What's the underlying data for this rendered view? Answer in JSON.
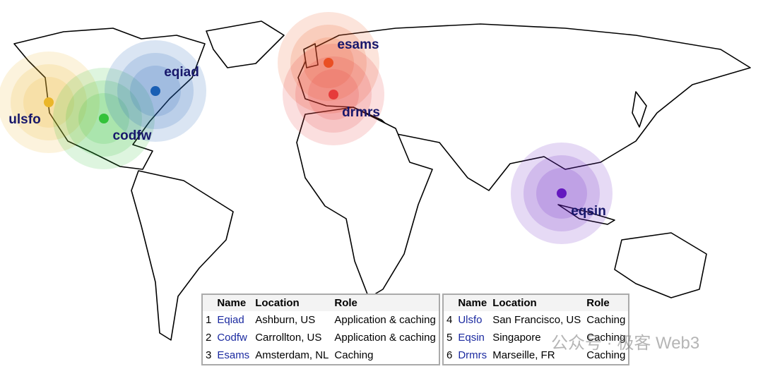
{
  "markers": [
    {
      "label": "ulsfo",
      "color": "#eab62a"
    },
    {
      "label": "codfw",
      "color": "#34c23a"
    },
    {
      "label": "eqiad",
      "color": "#1a5fb4"
    },
    {
      "label": "esams",
      "color": "#ec5a1c"
    },
    {
      "label": "drmrs",
      "color": "#e63b3b"
    },
    {
      "label": "eqsin",
      "color": "#6418bf"
    }
  ],
  "tables": [
    {
      "header": [
        "Name",
        "Location",
        "Role"
      ],
      "rows": [
        [
          "1",
          "Eqiad",
          "Ashburn, US",
          "Application & caching"
        ],
        [
          "2",
          "Codfw",
          "Carrollton, US",
          "Application & caching"
        ],
        [
          "3",
          "Esams",
          "Amsterdam, NL",
          "Caching"
        ]
      ]
    },
    {
      "header": [
        "Name",
        "Location",
        "Role"
      ],
      "rows": [
        [
          "4",
          "Ulsfo",
          "San Francisco, US",
          "Caching"
        ],
        [
          "5",
          "Eqsin",
          "Singapore",
          "Caching"
        ],
        [
          "6",
          "Drmrs",
          "Marseille, FR",
          "Caching"
        ]
      ]
    }
  ],
  "watermark": "公众号 · 极客 Web3"
}
